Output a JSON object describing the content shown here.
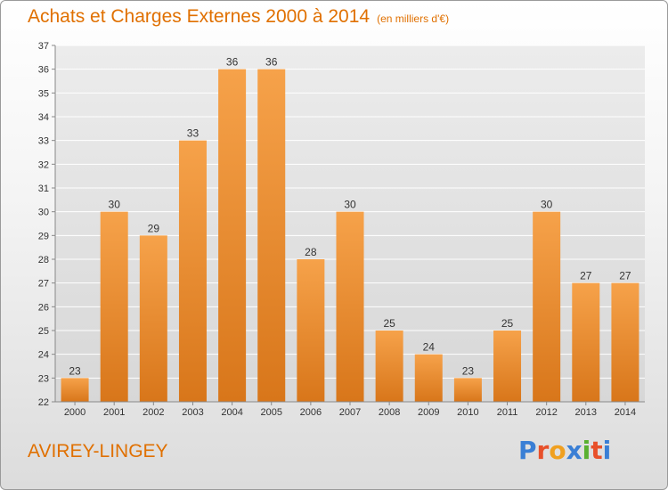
{
  "header": {
    "title": "Achats et Charges Externes 2000 à 2014",
    "unit": "(en milliers d'€)"
  },
  "footer": {
    "town": "AVIREY-LINGEY",
    "logo": "Proxiti"
  },
  "colors": {
    "accent": "#e07000",
    "bar_top": "#f6a24a",
    "bar_bottom": "#d8761a"
  },
  "chart_data": {
    "type": "bar",
    "title": "Achats et Charges Externes 2000 à 2014",
    "subtitle": "(en milliers d'€)",
    "categories": [
      "2000",
      "2001",
      "2002",
      "2003",
      "2004",
      "2005",
      "2006",
      "2007",
      "2008",
      "2009",
      "2010",
      "2011",
      "2012",
      "2013",
      "2014"
    ],
    "values": [
      23,
      30,
      29,
      33,
      36,
      36,
      28,
      30,
      25,
      24,
      23,
      25,
      30,
      27,
      27
    ],
    "xlabel": "",
    "ylabel": "",
    "ylim": [
      22,
      37
    ],
    "yticks": [
      22,
      23,
      24,
      25,
      26,
      27,
      28,
      29,
      30,
      31,
      32,
      33,
      34,
      35,
      36,
      37
    ],
    "grid": true
  }
}
